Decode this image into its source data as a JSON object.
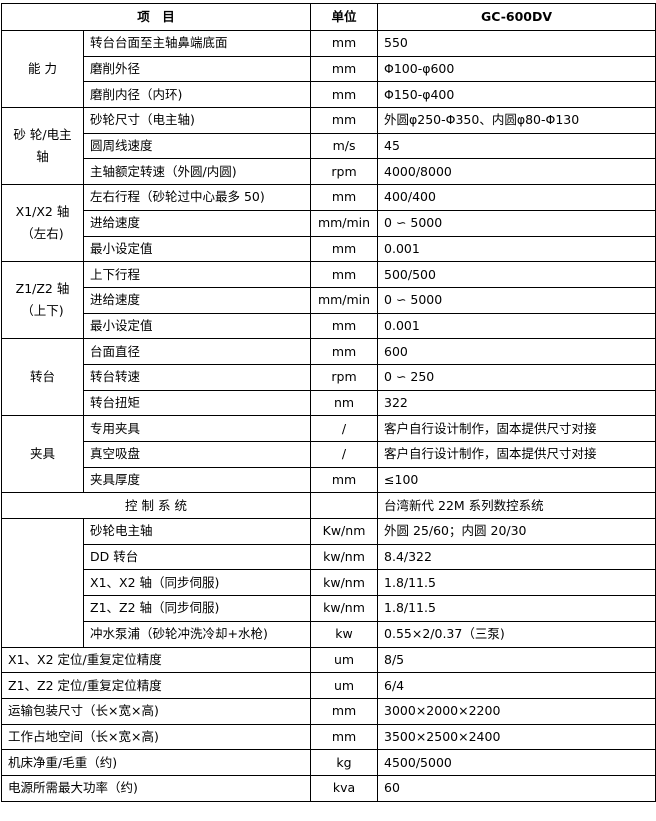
{
  "header": {
    "item": "项　目",
    "unit": "单位",
    "model": "GC-600DV"
  },
  "groups": [
    {
      "category": "能 力",
      "rows": [
        {
          "item": "转台台面至主轴鼻端底面",
          "unit": "mm",
          "value": "550"
        },
        {
          "item": "磨削外径",
          "unit": "mm",
          "value": "Φ100-φ600"
        },
        {
          "item": "磨削内径（内环)",
          "unit": "mm",
          "value": "Φ150-φ400"
        }
      ]
    },
    {
      "category": "砂 轮/电主轴",
      "rows": [
        {
          "item": "砂轮尺寸（电主轴)",
          "unit": "mm",
          "value": "外圆φ250-Φ350、内圆φ80-Φ130"
        },
        {
          "item": "圆周线速度",
          "unit": "m/s",
          "value": "45"
        },
        {
          "item": "主轴额定转速（外圆/内圆)",
          "unit": "rpm",
          "value": "4000/8000"
        }
      ]
    },
    {
      "category": "X1/X2 轴（左右)",
      "rows": [
        {
          "item": "左右行程（砂轮过中心最多 50)",
          "unit": "mm",
          "value": "400/400"
        },
        {
          "item": "进给速度",
          "unit": "mm/min",
          "value": "0 ∽ 5000"
        },
        {
          "item": "最小设定值",
          "unit": "mm",
          "value": "0.001"
        }
      ]
    },
    {
      "category": "Z1/Z2 轴（上下)",
      "rows": [
        {
          "item": "上下行程",
          "unit": "mm",
          "value": "500/500"
        },
        {
          "item": "进给速度",
          "unit": "mm/min",
          "value": "0 ∽ 5000"
        },
        {
          "item": "最小设定值",
          "unit": "mm",
          "value": "0.001"
        }
      ]
    },
    {
      "category": "转台",
      "rows": [
        {
          "item": "台面直径",
          "unit": "mm",
          "value": "600"
        },
        {
          "item": "转台转速",
          "unit": "rpm",
          "value": "0 ∽ 250"
        },
        {
          "item": "转台扭矩",
          "unit": "nm",
          "value": "322"
        }
      ]
    },
    {
      "category": "夹具",
      "rows": [
        {
          "item": "专用夹具",
          "unit": "/",
          "value": "客户自行设计制作，固本提供尺寸对接"
        },
        {
          "item": "真空吸盘",
          "unit": "/",
          "value": "客户自行设计制作，固本提供尺寸对接"
        },
        {
          "item": "夹具厚度",
          "unit": "mm",
          "value": "≤100"
        }
      ]
    }
  ],
  "control": {
    "item": "控 制 系 统",
    "unit": "",
    "value": "台湾新代 22M 系列数控系统"
  },
  "power": {
    "rows": [
      {
        "item": "砂轮电主轴",
        "unit": "Kw/nm",
        "value": "外圆 25/60；内圆 20/30"
      },
      {
        "item": "DD 转台",
        "unit": "kw/nm",
        "value": "8.4/322"
      },
      {
        "item": "X1、X2 轴（同步伺服)",
        "unit": "kw/nm",
        "value": "1.8/11.5"
      },
      {
        "item": "Z1、Z2 轴（同步伺服)",
        "unit": "kw/nm",
        "value": "1.8/11.5"
      },
      {
        "item": "冲水泵浦（砂轮冲洗冷却+水枪)",
        "unit": "kw",
        "value": "0.55×2/0.37（三泵)"
      }
    ]
  },
  "singles": [
    {
      "item": "X1、X2 定位/重复定位精度",
      "unit": "um",
      "value": "8/5"
    },
    {
      "item": "Z1、Z2 定位/重复定位精度",
      "unit": "um",
      "value": "6/4"
    },
    {
      "item": "运输包装尺寸（长×宽×高)",
      "unit": "mm",
      "value": "3000×2000×2200"
    },
    {
      "item": "工作占地空间（长×宽×高)",
      "unit": "mm",
      "value": "3500×2500×2400"
    },
    {
      "item": "机床净重/毛重（约)",
      "unit": "kg",
      "value": "4500/5000"
    },
    {
      "item": "电源所需最大功率（约)",
      "unit": "kva",
      "value": "60"
    }
  ]
}
